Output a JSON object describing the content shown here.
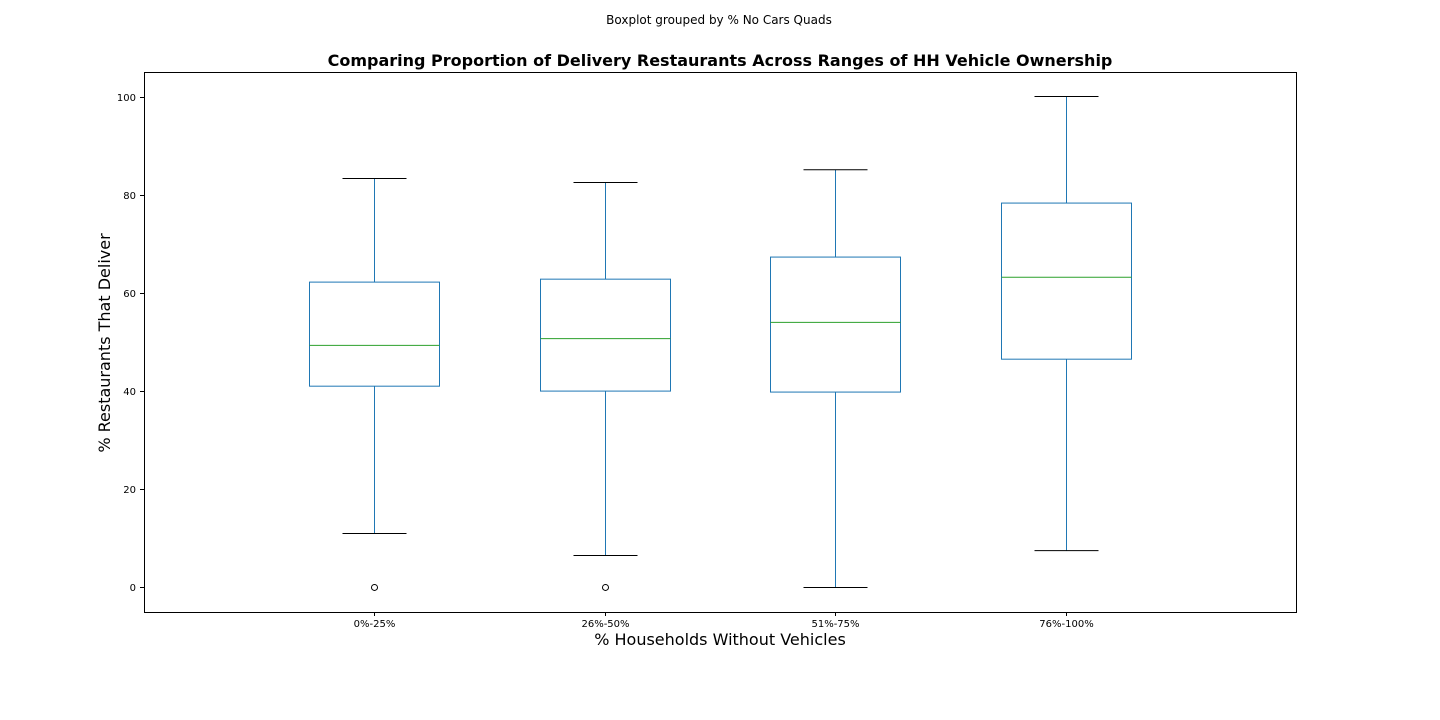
{
  "figure": {
    "suptitle": "Boxplot grouped by % No Cars Quads"
  },
  "chart_data": {
    "type": "boxplot",
    "title": "Comparing Proportion of Delivery Restaurants Across Ranges of HH Vehicle Ownership",
    "xlabel": "% Households Without Vehicles",
    "ylabel": "% Restaurants That Deliver",
    "ylim": [
      -5,
      105
    ],
    "yticks": [
      0,
      20,
      40,
      60,
      80,
      100
    ],
    "grid": false,
    "categories": [
      "0%-25%",
      "26%-50%",
      "51%-75%",
      "76%-100%"
    ],
    "boxes": [
      {
        "category": "0%-25%",
        "whisker_low": 11.0,
        "q1": 41.0,
        "median": 49.3,
        "q3": 62.2,
        "whisker_high": 83.3,
        "outliers": [
          0
        ]
      },
      {
        "category": "26%-50%",
        "whisker_low": 6.5,
        "q1": 40.0,
        "median": 50.7,
        "q3": 62.8,
        "whisker_high": 82.5,
        "outliers": [
          0
        ]
      },
      {
        "category": "51%-75%",
        "whisker_low": 0.0,
        "q1": 39.8,
        "median": 54.0,
        "q3": 67.3,
        "whisker_high": 85.1,
        "outliers": []
      },
      {
        "category": "76%-100%",
        "whisker_low": 7.5,
        "q1": 46.5,
        "median": 63.2,
        "q3": 78.3,
        "whisker_high": 100.0,
        "outliers": []
      }
    ],
    "colors": {
      "box": "#1f77b4",
      "whisker": "#1f77b4",
      "median": "#2ca02c",
      "cap": "#000000",
      "outlier": "#000000",
      "frame": "#000000"
    }
  }
}
